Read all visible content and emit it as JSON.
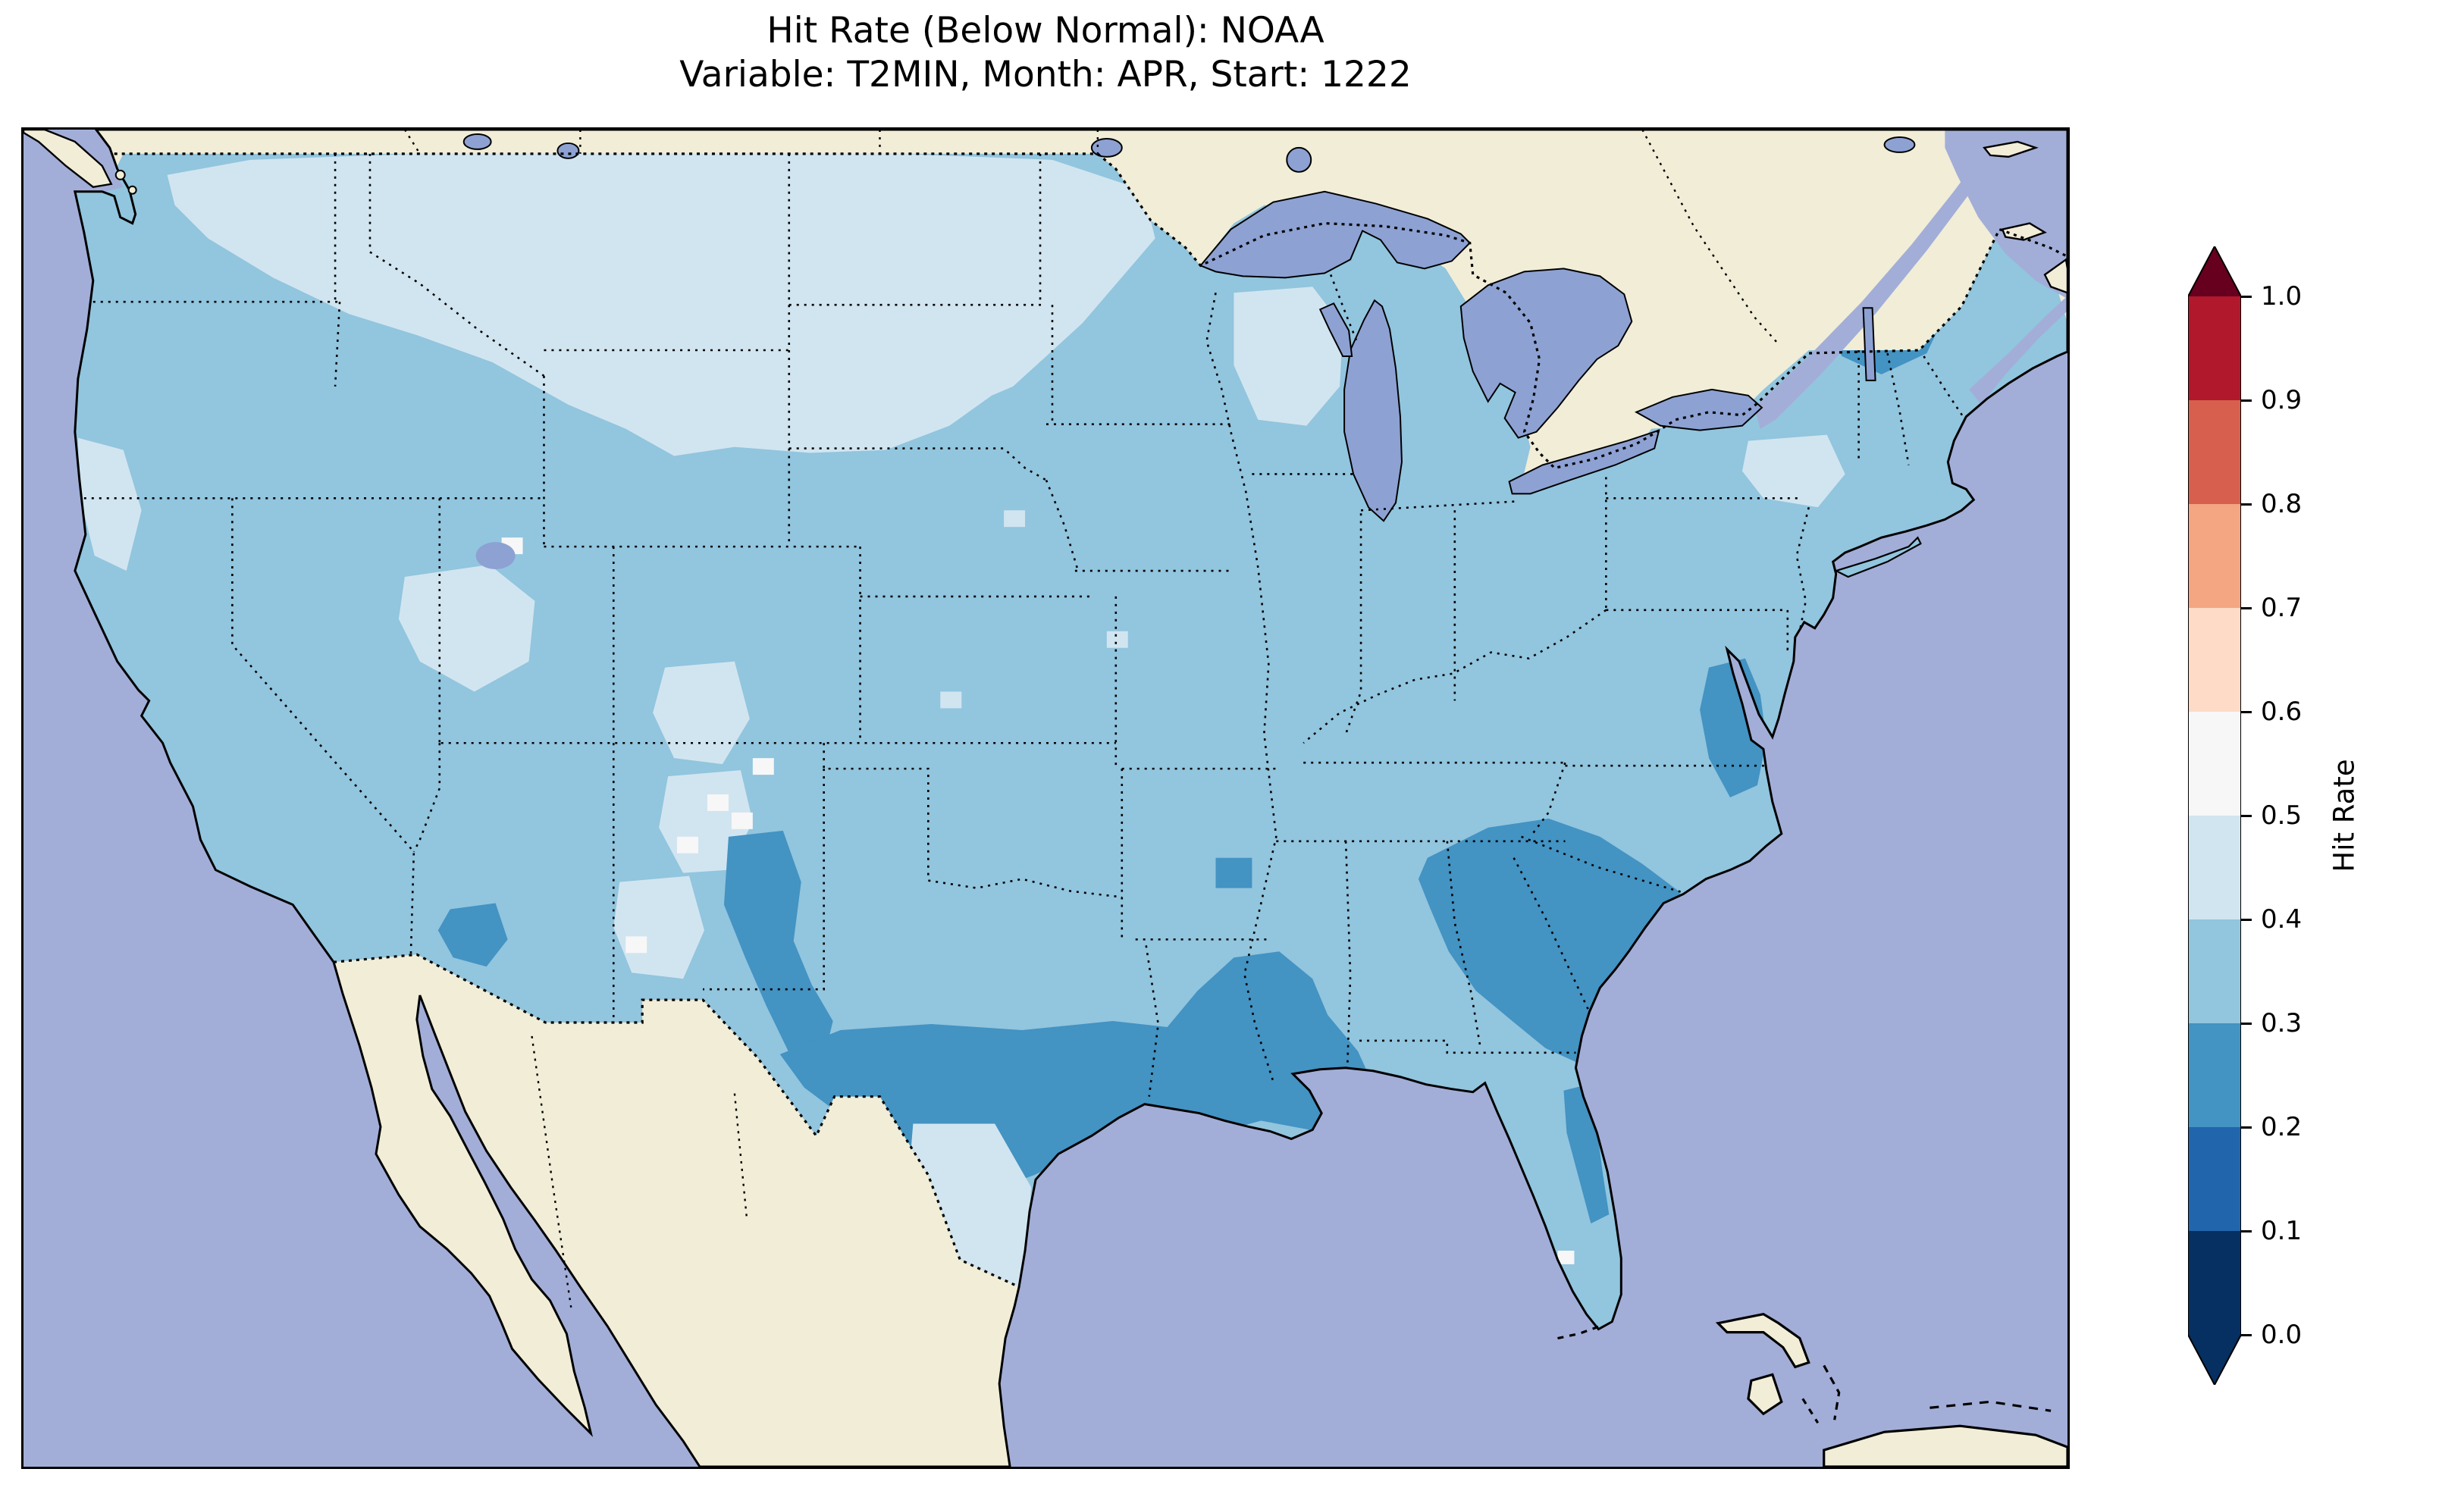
{
  "title": {
    "line1": "Hit Rate (Below Normal): NOAA",
    "line2": "Variable: T2MIN, Month: APR, Start: 1222"
  },
  "chart_data": {
    "type": "heatmap",
    "title": "Hit Rate (Below Normal): NOAA",
    "subtitle": "Variable: T2MIN, Month: APR, Start: 1222",
    "metric": "Hit Rate (Below Normal)",
    "dataset": "NOAA",
    "variable": "T2MIN",
    "month": "APR",
    "start": "1222",
    "geography": "Contiguous United States (gridded map, surrounding Canada/Mexico masked in beige, ocean in light blue)",
    "colorbar": {
      "label": "Hit Rate",
      "ticks": [
        "1.0",
        "0.9",
        "0.8",
        "0.7",
        "0.6",
        "0.5",
        "0.4",
        "0.3",
        "0.2",
        "0.1",
        "0.0"
      ],
      "range": [
        0.0,
        1.0
      ],
      "colormap": "RdBu_r discrete, 0.1 bins, extend triangles both ends",
      "legend_position": "right",
      "segments_top_to_bottom": [
        "#b2182b",
        "#d6604d",
        "#f4a582",
        "#fddbc7",
        "#f7f7f7",
        "#d1e5f0",
        "#92c5de",
        "#4393c3",
        "#2166ac",
        "#053061"
      ],
      "extend_over_color": "#67001f",
      "extend_under_color": "#053061"
    },
    "map_colors": {
      "ocean": "#a2aed8",
      "land_non_us": "#f1edd7",
      "lakes": "#8da1d3",
      "bin_05_06": "#f7f7f7",
      "bin_04_05": "#d1e5f0",
      "bin_03_04": "#92c5de",
      "bin_02_03": "#4393c3"
    },
    "region_values": [
      {
        "region": "Pacific coast Washington/Oregon/California",
        "hit_rate_bin": "0.3-0.4"
      },
      {
        "region": "Inland Northwest, Montana, Wyoming, Dakotas, western Minnesota, northern Nebraska",
        "hit_rate_bin": "0.4-0.5"
      },
      {
        "region": "Great Basin (N Utah / NE Nevada) patch",
        "hit_rate_bin": "0.4-0.5"
      },
      {
        "region": "Scattered cells in Colorado and New Mexico",
        "hit_rate_bin": "0.4-0.6"
      },
      {
        "region": "Central Plains, Midwest, Ohio Valley, interior Northeast",
        "hit_rate_bin": "0.3-0.4"
      },
      {
        "region": "West Texas / Oklahoma panhandle strip",
        "hit_rate_bin": "0.2-0.3"
      },
      {
        "region": "South-central Texas through Louisiana, Mississippi, Alabama Gulf belt",
        "hit_rate_bin": "0.2-0.3"
      },
      {
        "region": "Southern tip of Texas",
        "hit_rate_bin": "0.4-0.5"
      },
      {
        "region": "Georgia / South Carolina coastal plain",
        "hit_rate_bin": "0.2-0.3"
      },
      {
        "region": "Chesapeake Bay / coastal Virginia strip",
        "hit_rate_bin": "0.2-0.3"
      },
      {
        "region": "Maine",
        "hit_rate_bin": "0.2-0.3"
      },
      {
        "region": "Southeast Arizona spot",
        "hit_rate_bin": "0.2-0.3"
      },
      {
        "region": "Florida peninsula",
        "hit_rate_bin": "0.3-0.4 with a few 0.5-0.6 cells near the southern tip"
      }
    ]
  }
}
